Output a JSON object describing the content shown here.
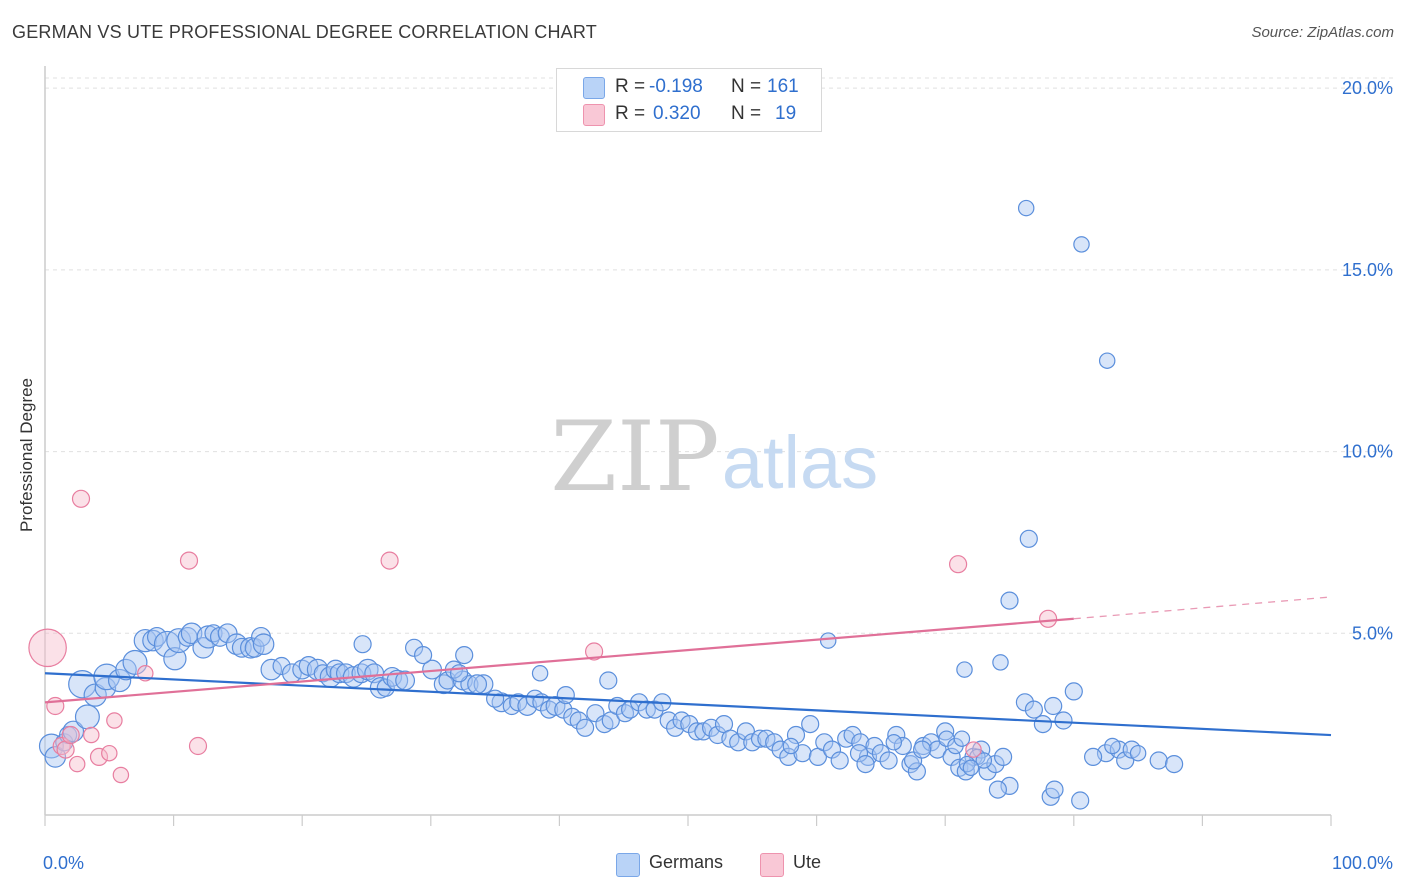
{
  "title": "GERMAN VS UTE PROFESSIONAL DEGREE CORRELATION CHART",
  "source": "Source: ZipAtlas.com",
  "watermark": {
    "zip": "ZIP",
    "atlas": "atlas"
  },
  "legend": {
    "r_label": "R =",
    "n_label": "N =",
    "rows": [
      {
        "name": "Germans",
        "r": "-0.198",
        "n": "161",
        "color": "#2f6fce"
      },
      {
        "name": "Ute",
        "r": "0.320",
        "n": "19",
        "color": "#e07098"
      }
    ]
  },
  "chart_data": {
    "type": "scatter",
    "title": "GERMAN VS UTE PROFESSIONAL DEGREE CORRELATION CHART",
    "xlabel": "",
    "ylabel": "Professional Degree",
    "xlim": [
      0,
      100
    ],
    "ylim": [
      0,
      20.5
    ],
    "x_tick_labels": [
      "0.0%",
      "100.0%"
    ],
    "y_ticks": [
      5,
      10,
      15,
      20
    ],
    "y_tick_labels": [
      "5.0%",
      "10.0%",
      "15.0%",
      "20.0%"
    ],
    "grid": true,
    "series": [
      {
        "name": "Germans",
        "color": "#5b8fdc",
        "fill": "#a9c6f2",
        "trend": {
          "x": [
            0,
            100
          ],
          "y": [
            3.9,
            2.2
          ],
          "dashed_after": null
        },
        "points": [
          [
            0.5,
            1.9,
            14
          ],
          [
            0.8,
            1.6,
            12
          ],
          [
            1.5,
            2.0,
            10
          ],
          [
            1.8,
            2.2,
            10
          ],
          [
            2.2,
            2.3,
            12
          ],
          [
            3.3,
            2.7,
            14
          ],
          [
            2.9,
            3.6,
            16
          ],
          [
            3.9,
            3.3,
            13
          ],
          [
            4.7,
            3.5,
            12
          ],
          [
            4.8,
            3.8,
            15
          ],
          [
            5.8,
            3.7,
            13
          ],
          [
            6.3,
            4.0,
            12
          ],
          [
            7.0,
            4.2,
            14
          ],
          [
            7.8,
            4.8,
            13
          ],
          [
            8.4,
            4.8,
            12
          ],
          [
            8.7,
            4.9,
            11
          ],
          [
            9.5,
            4.7,
            15
          ],
          [
            10.1,
            4.3,
            13
          ],
          [
            10.4,
            4.8,
            14
          ],
          [
            11.1,
            4.9,
            11
          ],
          [
            11.4,
            5.0,
            12
          ],
          [
            12.3,
            4.6,
            12
          ],
          [
            12.7,
            4.9,
            13
          ],
          [
            13.1,
            5.0,
            10
          ],
          [
            13.6,
            4.9,
            11
          ],
          [
            14.2,
            5.0,
            11
          ],
          [
            14.9,
            4.7,
            12
          ],
          [
            15.3,
            4.6,
            11
          ],
          [
            16.0,
            4.6,
            12
          ],
          [
            16.3,
            4.6,
            11
          ],
          [
            16.8,
            4.9,
            11
          ],
          [
            17.0,
            4.7,
            12
          ],
          [
            17.6,
            4.0,
            12
          ],
          [
            18.4,
            4.1,
            10
          ],
          [
            19.2,
            3.9,
            11
          ],
          [
            20.0,
            4.0,
            11
          ],
          [
            20.5,
            4.1,
            11
          ],
          [
            21.2,
            4.0,
            12
          ],
          [
            21.6,
            3.9,
            10
          ],
          [
            22.2,
            3.8,
            12
          ],
          [
            22.6,
            4.0,
            11
          ],
          [
            22.9,
            3.9,
            11
          ],
          [
            23.4,
            3.9,
            11
          ],
          [
            24.0,
            3.8,
            12
          ],
          [
            24.6,
            3.9,
            11
          ],
          [
            25.1,
            4.0,
            12
          ],
          [
            25.6,
            3.9,
            11
          ],
          [
            26.1,
            3.5,
            12
          ],
          [
            26.5,
            3.5,
            10
          ],
          [
            27.0,
            3.8,
            11
          ],
          [
            27.4,
            3.7,
            12
          ],
          [
            28.0,
            3.7,
            11
          ],
          [
            28.7,
            4.6,
            10
          ],
          [
            30.1,
            4.0,
            11
          ],
          [
            29.4,
            4.4,
            10
          ],
          [
            31.0,
            3.6,
            11
          ],
          [
            31.3,
            3.7,
            10
          ],
          [
            32.5,
            3.7,
            11
          ],
          [
            33.0,
            3.6,
            10
          ],
          [
            34.1,
            3.6,
            11
          ],
          [
            24.7,
            4.7,
            10
          ],
          [
            31.8,
            4.0,
            10
          ],
          [
            32.2,
            3.9,
            10
          ],
          [
            33.6,
            3.6,
            11
          ],
          [
            32.6,
            4.4,
            10
          ],
          [
            35.5,
            3.1,
            11
          ],
          [
            36.3,
            3.0,
            10
          ],
          [
            36.8,
            3.1,
            10
          ],
          [
            37.5,
            3.0,
            11
          ],
          [
            38.1,
            3.2,
            10
          ],
          [
            35.0,
            3.2,
            10
          ],
          [
            38.6,
            3.1,
            10
          ],
          [
            39.2,
            2.9,
            10
          ],
          [
            39.7,
            3.0,
            11
          ],
          [
            40.3,
            2.9,
            10
          ],
          [
            38.5,
            3.9,
            9
          ],
          [
            40.5,
            3.3,
            10
          ],
          [
            41.0,
            2.7,
            10
          ],
          [
            41.5,
            2.6,
            10
          ],
          [
            42.0,
            2.4,
            10
          ],
          [
            42.8,
            2.8,
            10
          ],
          [
            43.5,
            2.5,
            10
          ],
          [
            44.0,
            2.6,
            10
          ],
          [
            44.5,
            3.0,
            10
          ],
          [
            45.1,
            2.8,
            10
          ],
          [
            43.8,
            3.7,
            10
          ],
          [
            45.5,
            2.9,
            10
          ],
          [
            46.2,
            3.1,
            10
          ],
          [
            46.8,
            2.9,
            10
          ],
          [
            47.4,
            2.9,
            10
          ],
          [
            48.0,
            3.1,
            10
          ],
          [
            48.5,
            2.6,
            10
          ],
          [
            49.0,
            2.4,
            10
          ],
          [
            49.5,
            2.6,
            10
          ],
          [
            50.1,
            2.5,
            10
          ],
          [
            50.7,
            2.3,
            10
          ],
          [
            51.2,
            2.3,
            10
          ],
          [
            51.8,
            2.4,
            10
          ],
          [
            52.3,
            2.2,
            10
          ],
          [
            52.8,
            2.5,
            10
          ],
          [
            53.3,
            2.1,
            10
          ],
          [
            53.9,
            2.0,
            10
          ],
          [
            54.5,
            2.3,
            10
          ],
          [
            55.0,
            2.0,
            10
          ],
          [
            55.6,
            2.1,
            10
          ],
          [
            56.1,
            2.1,
            10
          ],
          [
            56.7,
            2.0,
            10
          ],
          [
            57.2,
            1.8,
            10
          ],
          [
            57.8,
            1.6,
            10
          ],
          [
            58.4,
            2.2,
            10
          ],
          [
            58.9,
            1.7,
            10
          ],
          [
            59.5,
            2.5,
            10
          ],
          [
            60.1,
            1.6,
            10
          ],
          [
            60.6,
            2.0,
            10
          ],
          [
            61.2,
            1.8,
            10
          ],
          [
            61.8,
            1.5,
            10
          ],
          [
            62.3,
            2.1,
            10
          ],
          [
            62.8,
            2.2,
            10
          ],
          [
            63.4,
            2.0,
            10
          ],
          [
            64.0,
            1.6,
            10
          ],
          [
            64.5,
            1.9,
            10
          ],
          [
            65.0,
            1.7,
            10
          ],
          [
            65.6,
            1.5,
            10
          ],
          [
            66.2,
            2.2,
            10
          ],
          [
            66.7,
            1.9,
            10
          ],
          [
            67.3,
            1.4,
            10
          ],
          [
            67.8,
            1.2,
            10
          ],
          [
            68.3,
            1.9,
            10
          ],
          [
            68.9,
            2.0,
            10
          ],
          [
            69.4,
            1.8,
            10
          ],
          [
            70.0,
            2.3,
            10
          ],
          [
            70.5,
            1.6,
            10
          ],
          [
            71.1,
            1.3,
            10
          ],
          [
            71.6,
            1.2,
            10
          ],
          [
            72.2,
            1.6,
            10
          ],
          [
            72.8,
            1.8,
            10
          ],
          [
            73.3,
            1.2,
            10
          ],
          [
            73.9,
            1.4,
            10
          ],
          [
            74.5,
            1.6,
            10
          ],
          [
            75.0,
            0.8,
            10
          ],
          [
            60.9,
            4.8,
            9
          ],
          [
            63.3,
            1.7,
            10
          ],
          [
            63.8,
            1.4,
            10
          ],
          [
            67.5,
            1.5,
            10
          ],
          [
            68.2,
            1.8,
            10
          ],
          [
            70.1,
            2.1,
            9
          ],
          [
            70.8,
            1.9,
            9
          ],
          [
            72.5,
            1.6,
            9
          ],
          [
            73.0,
            1.5,
            9
          ],
          [
            74.1,
            0.7,
            10
          ],
          [
            78.2,
            0.5,
            10
          ],
          [
            76.2,
            3.1,
            10
          ],
          [
            77.6,
            2.5,
            10
          ],
          [
            76.9,
            2.9,
            10
          ],
          [
            78.4,
            3.0,
            10
          ],
          [
            79.2,
            2.6,
            10
          ],
          [
            80.0,
            3.4,
            10
          ],
          [
            82.5,
            1.7,
            10
          ],
          [
            83.5,
            1.8,
            10
          ],
          [
            84.0,
            1.5,
            10
          ],
          [
            81.5,
            1.6,
            10
          ],
          [
            84.5,
            1.8,
            10
          ],
          [
            86.6,
            1.5,
            10
          ],
          [
            87.8,
            1.4,
            10
          ],
          [
            71.3,
            2.1,
            9
          ],
          [
            71.5,
            4.0,
            9
          ],
          [
            71.7,
            1.4,
            9
          ],
          [
            74.3,
            4.2,
            9
          ],
          [
            75.0,
            5.9,
            10
          ],
          [
            76.5,
            7.6,
            10
          ],
          [
            78.5,
            0.7,
            10
          ],
          [
            80.5,
            0.4,
            10
          ],
          [
            76.3,
            16.7,
            9
          ],
          [
            80.6,
            15.7,
            9
          ],
          [
            82.6,
            12.5,
            9
          ],
          [
            72.0,
            1.3,
            9
          ],
          [
            85.0,
            1.7,
            9
          ],
          [
            83.0,
            1.9,
            9
          ],
          [
            66.0,
            2.0,
            9
          ],
          [
            58.0,
            1.9,
            9
          ]
        ]
      },
      {
        "name": "Ute",
        "color": "#e87ea0",
        "fill": "#f7bccd",
        "trend": {
          "x": [
            0,
            80,
            100
          ],
          "y": [
            3.1,
            5.4,
            6.0
          ],
          "dashed_after": 80
        },
        "points": [
          [
            0.2,
            4.6,
            22
          ],
          [
            0.8,
            3.0,
            10
          ],
          [
            1.3,
            1.9,
            10
          ],
          [
            1.6,
            1.8,
            10
          ],
          [
            2.0,
            2.2,
            10
          ],
          [
            2.5,
            1.4,
            9
          ],
          [
            2.8,
            8.7,
            10
          ],
          [
            3.6,
            2.2,
            9
          ],
          [
            4.2,
            1.6,
            10
          ],
          [
            5.0,
            1.7,
            9
          ],
          [
            5.4,
            2.6,
            9
          ],
          [
            5.9,
            1.1,
            9
          ],
          [
            7.8,
            3.9,
            9
          ],
          [
            11.2,
            7.0,
            10
          ],
          [
            11.9,
            1.9,
            10
          ],
          [
            26.8,
            7.0,
            10
          ],
          [
            42.7,
            4.5,
            10
          ],
          [
            71.0,
            6.9,
            10
          ],
          [
            72.2,
            1.8,
            9
          ],
          [
            78.0,
            5.4,
            10
          ]
        ]
      }
    ]
  }
}
